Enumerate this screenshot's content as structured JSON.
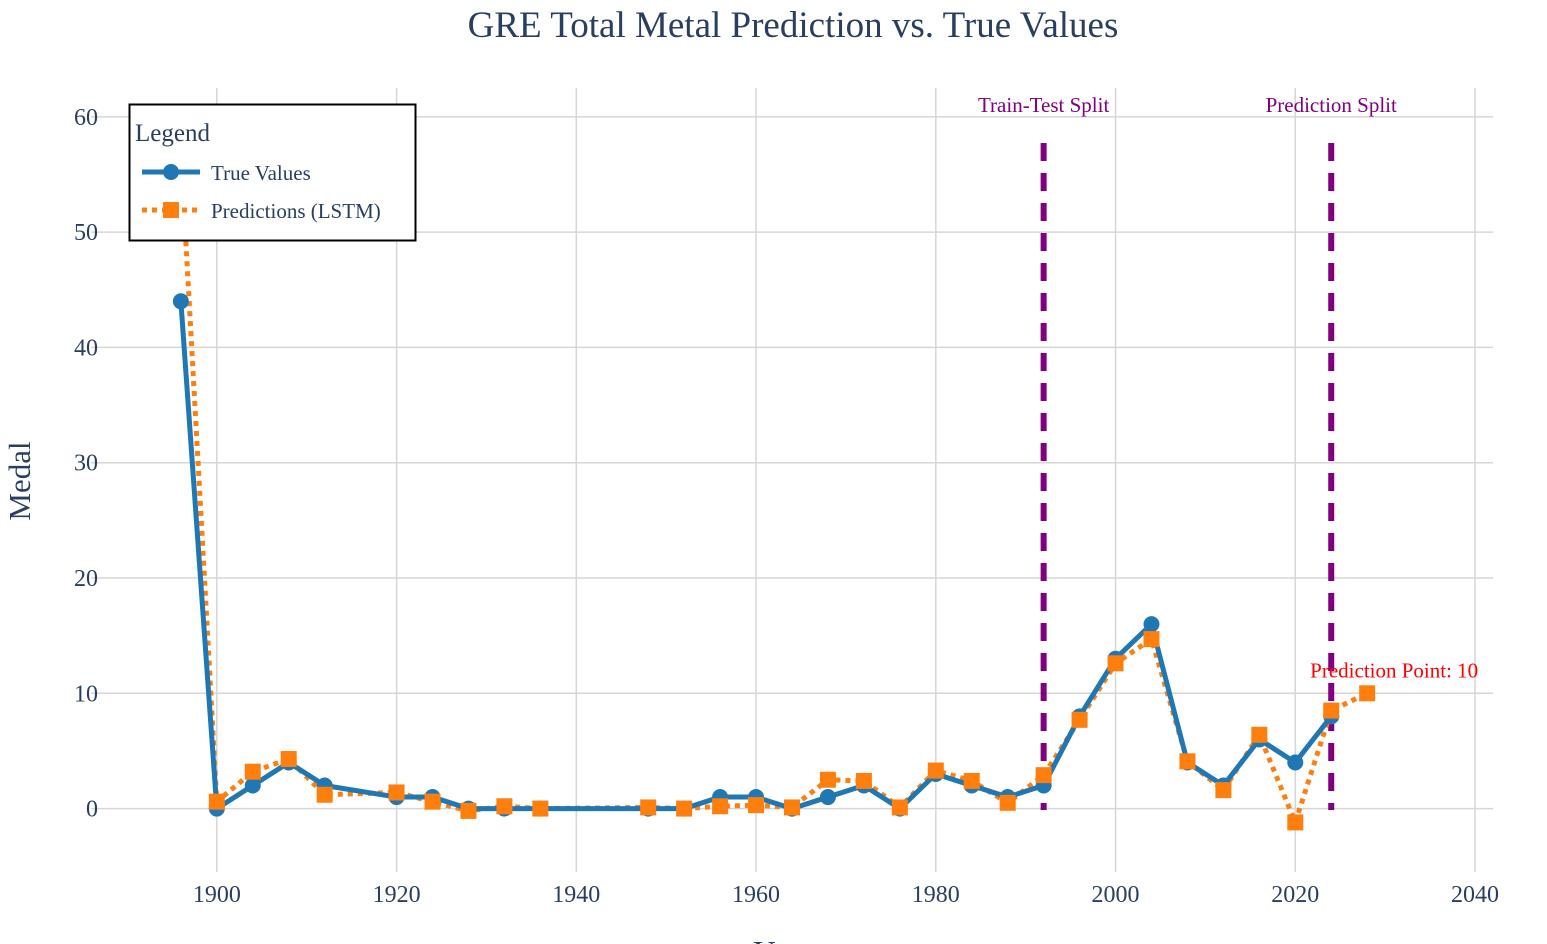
{
  "chart_data": {
    "type": "line",
    "title": "GRE Total Metal Prediction vs. True Values",
    "xlabel": "Year",
    "ylabel": "Medal",
    "xlim": [
      1886,
      2042
    ],
    "ylim": [
      -5.5,
      62.5
    ],
    "x_ticks": [
      1900,
      1920,
      1940,
      1960,
      1980,
      2000,
      2020,
      2040
    ],
    "y_ticks": [
      0,
      10,
      20,
      30,
      40,
      50,
      60
    ],
    "grid": true,
    "legend": {
      "title": "Legend",
      "position": "top-left"
    },
    "series": [
      {
        "name": "True Values",
        "color": "#1f77b4",
        "marker": "circle",
        "line": "solid",
        "x": [
          1896,
          1900,
          1904,
          1908,
          1912,
          1920,
          1924,
          1928,
          1932,
          1936,
          1948,
          1952,
          1956,
          1960,
          1964,
          1968,
          1972,
          1976,
          1980,
          1984,
          1988,
          1992,
          1996,
          2000,
          2004,
          2008,
          2012,
          2016,
          2020,
          2024
        ],
        "y": [
          44,
          0,
          2,
          4,
          2,
          1,
          1,
          0,
          0,
          0,
          0,
          0,
          1,
          1,
          0,
          1,
          2,
          0,
          3,
          2,
          1,
          2,
          8,
          13,
          16,
          4,
          2,
          6,
          4,
          8
        ]
      },
      {
        "name": "Predictions (LSTM)",
        "color": "#ff7f0e",
        "marker": "square",
        "line": "dot",
        "x": [
          1896,
          1900,
          1904,
          1908,
          1912,
          1920,
          1924,
          1928,
          1932,
          1936,
          1948,
          1952,
          1956,
          1960,
          1964,
          1968,
          1972,
          1976,
          1980,
          1984,
          1988,
          1992,
          1996,
          2000,
          2004,
          2008,
          2012,
          2016,
          2020,
          2024,
          2028
        ],
        "y": [
          57,
          0.6,
          3.2,
          4.3,
          1.2,
          1.4,
          0.6,
          -0.2,
          0.2,
          0,
          0.1,
          0,
          0.2,
          0.3,
          0.1,
          2.5,
          2.4,
          0.1,
          3.3,
          2.4,
          0.5,
          2.9,
          7.7,
          12.6,
          14.7,
          4.1,
          1.6,
          6.4,
          -1.2,
          8.5,
          10
        ]
      }
    ],
    "vlines": [
      {
        "x": 1992,
        "label": "Train-Test Split",
        "color": "#800080"
      },
      {
        "x": 2024,
        "label": "Prediction Split",
        "color": "#800080"
      }
    ],
    "annotations": [
      {
        "x": 2028,
        "y": 10,
        "text": "Prediction Point: 10",
        "color": "#ff0000"
      }
    ]
  }
}
